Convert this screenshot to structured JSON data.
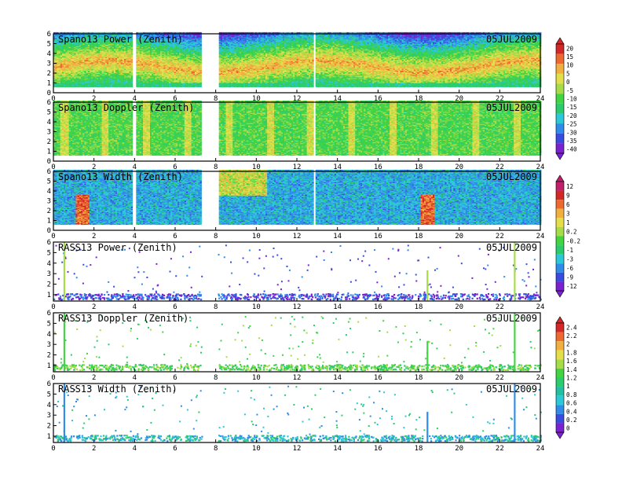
{
  "colors": {
    "scale_a": [
      "#7a22d0",
      "#3a4ce0",
      "#2f8ce8",
      "#2dc8d8",
      "#2ccc6c",
      "#42d442",
      "#a6dc48",
      "#e4de4a",
      "#f0b040",
      "#ec6a30",
      "#d42828"
    ],
    "scale_b": [
      "#7a22d0",
      "#3a4ce0",
      "#2f8ce8",
      "#2dc8d8",
      "#2ccc6c",
      "#42d442",
      "#a6dc48",
      "#e4de4a",
      "#f0b040",
      "#ec6a30",
      "#d42828",
      "#c0206a"
    ],
    "scale_c": [
      "#7a22d0",
      "#3a4ce0",
      "#2f8ce8",
      "#2dc8d8",
      "#22c0a0",
      "#2ccc6c",
      "#42d442",
      "#a6dc48",
      "#e4de4a",
      "#f0b040",
      "#ec6a30",
      "#d42828"
    ]
  },
  "chart_data": [
    {
      "type": "heatmap",
      "title": "Spano13 Power (Zenith)",
      "date": "05JUL2009",
      "x_ticks": [
        "0",
        "2",
        "4",
        "6",
        "8",
        "10",
        "12",
        "14",
        "16",
        "18",
        "20",
        "22",
        "24"
      ],
      "y_ticks": [
        "0",
        "1",
        "2",
        "3",
        "4",
        "5",
        "6"
      ],
      "xlim": [
        0,
        24
      ],
      "ylim": [
        0,
        6
      ],
      "gaps": [
        [
          7.3,
          8.1
        ]
      ],
      "colorbar": "a",
      "mode": "power"
    },
    {
      "type": "heatmap",
      "title": "Spano13 Doppler (Zenith)",
      "date": "05JUL2009",
      "x_ticks": [
        "0",
        "2",
        "4",
        "6",
        "8",
        "10",
        "12",
        "14",
        "16",
        "18",
        "20",
        "22",
        "24"
      ],
      "y_ticks": [
        "0",
        "1",
        "2",
        "3",
        "4",
        "5",
        "6"
      ],
      "xlim": [
        0,
        24
      ],
      "ylim": [
        0,
        6
      ],
      "gaps": [
        [
          7.3,
          8.1
        ]
      ],
      "colorbar": "none",
      "mode": "doppler"
    },
    {
      "type": "heatmap",
      "title": "Spano13 Width (Zenith)",
      "date": "05JUL2009",
      "x_ticks": [
        "0",
        "2",
        "4",
        "6",
        "8",
        "10",
        "12",
        "14",
        "16",
        "18",
        "20",
        "22",
        "24"
      ],
      "y_ticks": [
        "0",
        "1",
        "2",
        "3",
        "4",
        "5",
        "6"
      ],
      "xlim": [
        0,
        24
      ],
      "ylim": [
        0,
        6
      ],
      "gaps": [
        [
          7.3,
          8.1
        ]
      ],
      "colorbar": "b",
      "mode": "width"
    },
    {
      "type": "scatter",
      "title": "RASS13 Power (Zenith)",
      "date": "05JUL2009",
      "x_ticks": [
        "0",
        "2",
        "4",
        "6",
        "8",
        "10",
        "12",
        "14",
        "16",
        "18",
        "20",
        "22",
        "24"
      ],
      "y_ticks": [
        "1",
        "2",
        "3",
        "4",
        "5",
        "6"
      ],
      "xlim": [
        0,
        24
      ],
      "ylim": [
        0.4,
        6
      ],
      "gaps": [
        [
          7.3,
          8.1
        ]
      ],
      "colorbar": "none",
      "mode": "rass_power"
    },
    {
      "type": "scatter",
      "title": "RASS13 Doppler (Zenith)",
      "date": "05JUL2009",
      "x_ticks": [
        "0",
        "2",
        "4",
        "6",
        "8",
        "10",
        "12",
        "14",
        "16",
        "18",
        "20",
        "22",
        "24"
      ],
      "y_ticks": [
        "1",
        "2",
        "3",
        "4",
        "5",
        "6"
      ],
      "xlim": [
        0,
        24
      ],
      "ylim": [
        0.4,
        6
      ],
      "gaps": [
        [
          7.3,
          8.1
        ]
      ],
      "colorbar": "c",
      "mode": "rass_doppler"
    },
    {
      "type": "scatter",
      "title": "RASS13 Width (Zenith)",
      "date": "05JUL2009",
      "x_ticks": [
        "0",
        "2",
        "4",
        "6",
        "8",
        "10",
        "12",
        "14",
        "16",
        "18",
        "20",
        "22",
        "24"
      ],
      "y_ticks": [
        "1",
        "2",
        "3",
        "4",
        "5",
        "6"
      ],
      "xlim": [
        0,
        24
      ],
      "ylim": [
        0.4,
        6
      ],
      "gaps": [
        [
          7.3,
          8.1
        ]
      ],
      "colorbar": "none",
      "mode": "rass_width"
    }
  ],
  "colorbars": {
    "a": {
      "labels": [
        "20",
        "15",
        "10",
        "5",
        "0",
        "-5",
        "-10",
        "-15",
        "-20",
        "-25",
        "-30",
        "-35",
        "-40"
      ]
    },
    "b": {
      "labels": [
        "12",
        "9",
        "6",
        "3",
        "1",
        "0.2",
        "-0.2",
        "-1",
        "-3",
        "-6",
        "-9",
        "-12"
      ]
    },
    "c": {
      "labels": [
        "2.4",
        "2.2",
        "2",
        "1.8",
        "1.6",
        "1.4",
        "1.2",
        "1",
        "0.8",
        "0.6",
        "0.4",
        "0.2",
        "0"
      ]
    }
  }
}
